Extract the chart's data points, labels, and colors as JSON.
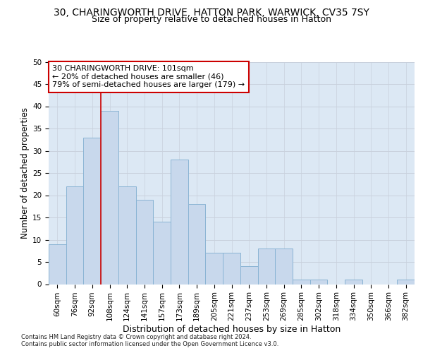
{
  "title_line1": "30, CHARINGWORTH DRIVE, HATTON PARK, WARWICK, CV35 7SY",
  "title_line2": "Size of property relative to detached houses in Hatton",
  "xlabel": "Distribution of detached houses by size in Hatton",
  "ylabel": "Number of detached properties",
  "categories": [
    "60sqm",
    "76sqm",
    "92sqm",
    "108sqm",
    "124sqm",
    "141sqm",
    "157sqm",
    "173sqm",
    "189sqm",
    "205sqm",
    "221sqm",
    "237sqm",
    "253sqm",
    "269sqm",
    "285sqm",
    "302sqm",
    "318sqm",
    "334sqm",
    "350sqm",
    "366sqm",
    "382sqm"
  ],
  "values": [
    9,
    22,
    33,
    39,
    22,
    19,
    14,
    28,
    18,
    7,
    7,
    4,
    8,
    8,
    1,
    1,
    0,
    1,
    0,
    0,
    1
  ],
  "bar_color": "#c8d8ec",
  "bar_edge_color": "#8ab4d4",
  "red_line_x": 2.5,
  "annotation_text": "30 CHARINGWORTH DRIVE: 101sqm\n← 20% of detached houses are smaller (46)\n79% of semi-detached houses are larger (179) →",
  "annotation_box_color": "#ffffff",
  "annotation_box_edge": "#cc0000",
  "red_line_color": "#cc0000",
  "ylim": [
    0,
    50
  ],
  "yticks": [
    0,
    5,
    10,
    15,
    20,
    25,
    30,
    35,
    40,
    45,
    50
  ],
  "grid_color": "#c8d0dc",
  "bg_color": "#dce8f4",
  "footer": "Contains HM Land Registry data © Crown copyright and database right 2024.\nContains public sector information licensed under the Open Government Licence v3.0.",
  "title_fontsize": 10,
  "subtitle_fontsize": 9,
  "xlabel_fontsize": 9,
  "ylabel_fontsize": 8.5,
  "tick_fontsize": 7.5,
  "ann_fontsize": 8,
  "footer_fontsize": 6
}
